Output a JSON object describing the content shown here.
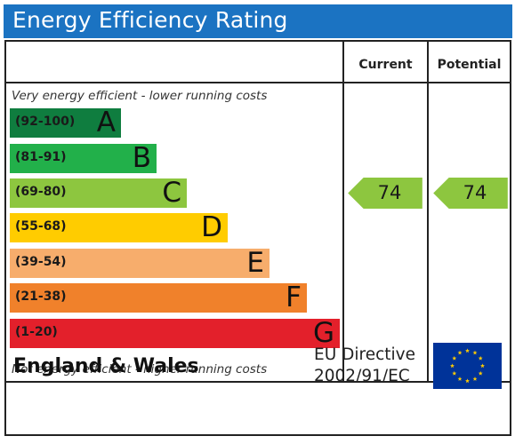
{
  "header": {
    "title": "Energy Efficiency Rating"
  },
  "columns": {
    "current": "Current",
    "potential": "Potential"
  },
  "notes": {
    "top": "Very energy efficient - lower running costs",
    "bottom": "Not energy efficient - higher running costs"
  },
  "bands": [
    {
      "range": "(92-100)",
      "letter": "A",
      "color": "#0f7d3f"
    },
    {
      "range": "(81-91)",
      "letter": "B",
      "color": "#22b04a"
    },
    {
      "range": "(69-80)",
      "letter": "C",
      "color": "#8dc63f"
    },
    {
      "range": "(55-68)",
      "letter": "D",
      "color": "#ffcc00"
    },
    {
      "range": "(39-54)",
      "letter": "E",
      "color": "#f7ad6c"
    },
    {
      "range": "(21-38)",
      "letter": "F",
      "color": "#f0812b"
    },
    {
      "range": "(1-20)",
      "letter": "G",
      "color": "#e3202b"
    }
  ],
  "ratings": {
    "current": "74",
    "potential": "74",
    "color": "#8dc63f"
  },
  "footer": {
    "region": "England & Wales",
    "directive_line1": "EU Directive",
    "directive_line2": "2002/91/EC",
    "flag_color": "#003399",
    "star_color": "#ffcc00"
  }
}
